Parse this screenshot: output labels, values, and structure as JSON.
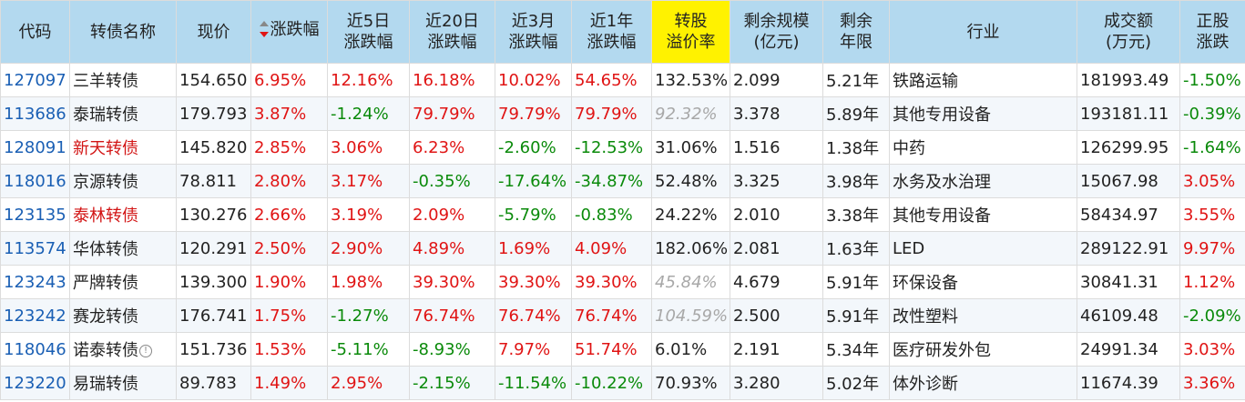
{
  "headers": {
    "code": "代码",
    "name": "转债名称",
    "price": "现价",
    "change": "涨跌幅",
    "chg5d_1": "近5日",
    "chg5d_2": "涨跌幅",
    "chg20d_1": "近20日",
    "chg20d_2": "涨跌幅",
    "chg3m_1": "近3月",
    "chg3m_2": "涨跌幅",
    "chg1y_1": "近1年",
    "chg1y_2": "涨跌幅",
    "premium_1": "转股",
    "premium_2": "溢价率",
    "scale_1": "剩余规模",
    "scale_2": "(亿元)",
    "years_1": "剩余",
    "years_2": "年限",
    "industry": "行业",
    "volume_1": "成交额",
    "volume_2": "(万元)",
    "stock_1": "正股",
    "stock_2": "涨跌"
  },
  "rows": [
    {
      "code": "127097",
      "name": "三羊转债",
      "price": "154.650",
      "change": "6.95%",
      "chg5d": "12.16%",
      "chg20d": "16.18%",
      "chg3m": "10.02%",
      "chg1y": "54.65%",
      "premium": "132.53%",
      "scale": "2.099",
      "years": "5.21年",
      "industry": "铁路运输",
      "volume": "181993.49",
      "stock": "-1.50%"
    },
    {
      "code": "113686",
      "name": "泰瑞转债",
      "price": "179.793",
      "change": "3.87%",
      "chg5d": "-1.24%",
      "chg20d": "79.79%",
      "chg3m": "79.79%",
      "chg1y": "79.79%",
      "premium": "92.32%",
      "scale": "3.378",
      "years": "5.89年",
      "industry": "其他专用设备",
      "volume": "193181.11",
      "stock": "-0.39%"
    },
    {
      "code": "128091",
      "name": "新天转债",
      "price": "145.820",
      "change": "2.85%",
      "chg5d": "3.06%",
      "chg20d": "6.23%",
      "chg3m": "-2.60%",
      "chg1y": "-12.53%",
      "premium": "31.06%",
      "scale": "1.516",
      "years": "1.38年",
      "industry": "中药",
      "volume": "126299.95",
      "stock": "-1.64%"
    },
    {
      "code": "118016",
      "name": "京源转债",
      "price": "78.811",
      "change": "2.80%",
      "chg5d": "3.17%",
      "chg20d": "-0.35%",
      "chg3m": "-17.64%",
      "chg1y": "-34.87%",
      "premium": "52.48%",
      "scale": "3.325",
      "years": "3.98年",
      "industry": "水务及水治理",
      "volume": "15067.98",
      "stock": "3.05%"
    },
    {
      "code": "123135",
      "name": "泰林转债",
      "price": "130.276",
      "change": "2.66%",
      "chg5d": "3.19%",
      "chg20d": "2.09%",
      "chg3m": "-5.79%",
      "chg1y": "-0.83%",
      "premium": "24.22%",
      "scale": "2.010",
      "years": "3.38年",
      "industry": "其他专用设备",
      "volume": "58434.97",
      "stock": "3.55%"
    },
    {
      "code": "113574",
      "name": "华体转债",
      "price": "120.291",
      "change": "2.50%",
      "chg5d": "2.90%",
      "chg20d": "4.89%",
      "chg3m": "1.69%",
      "chg1y": "4.09%",
      "premium": "182.06%",
      "scale": "2.081",
      "years": "1.63年",
      "industry": "LED",
      "volume": "289122.91",
      "stock": "9.97%"
    },
    {
      "code": "123243",
      "name": "严牌转债",
      "price": "139.300",
      "change": "1.90%",
      "chg5d": "1.98%",
      "chg20d": "39.30%",
      "chg3m": "39.30%",
      "chg1y": "39.30%",
      "premium": "45.84%",
      "scale": "4.679",
      "years": "5.91年",
      "industry": "环保设备",
      "volume": "30841.31",
      "stock": "1.12%"
    },
    {
      "code": "123242",
      "name": "赛龙转债",
      "price": "176.741",
      "change": "1.75%",
      "chg5d": "-1.27%",
      "chg20d": "76.74%",
      "chg3m": "76.74%",
      "chg1y": "76.74%",
      "premium": "104.59%",
      "scale": "2.500",
      "years": "5.91年",
      "industry": "改性塑料",
      "volume": "46109.48",
      "stock": "-2.09%"
    },
    {
      "code": "118046",
      "name": "诺泰转债",
      "price": "151.736",
      "change": "1.53%",
      "chg5d": "-5.11%",
      "chg20d": "-8.93%",
      "chg3m": "7.97%",
      "chg1y": "51.74%",
      "premium": "6.01%",
      "scale": "2.191",
      "years": "5.34年",
      "industry": "医疗研发外包",
      "volume": "24991.34",
      "stock": "3.03%",
      "info": "!"
    },
    {
      "code": "123220",
      "name": "易瑞转债",
      "price": "89.783",
      "change": "1.49%",
      "chg5d": "2.95%",
      "chg20d": "-2.15%",
      "chg3m": "-11.54%",
      "chg1y": "-10.22%",
      "premium": "70.93%",
      "scale": "3.280",
      "years": "5.02年",
      "industry": "体外诊断",
      "volume": "11674.39",
      "stock": "3.36%"
    }
  ],
  "styles": {
    "red_name_rows": [
      2,
      4
    ],
    "italic_premium_rows": [
      1,
      6,
      7
    ]
  },
  "colors": {
    "header_bg": "#b3d9ef",
    "highlight_header_bg": "#fff200",
    "up": "#e01414",
    "down": "#0a8a0a",
    "code": "#1a5fb4"
  }
}
